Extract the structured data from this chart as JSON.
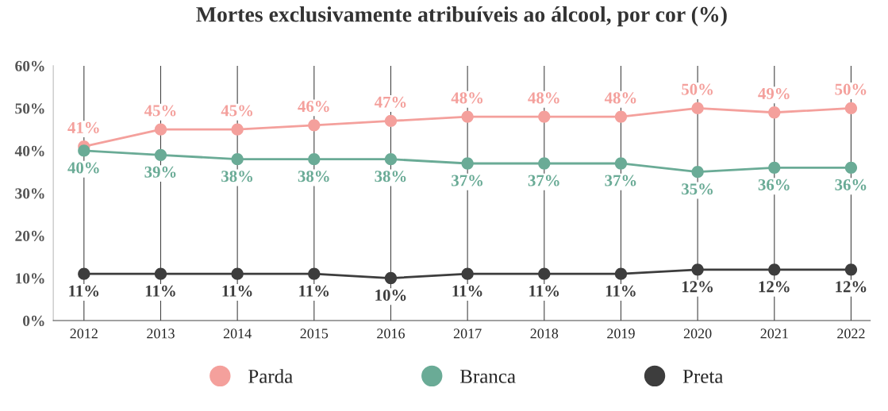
{
  "chart_data": {
    "type": "line",
    "title": "Mortes exclusivamente atribuíveis ao álcool, por cor (%)",
    "categories": [
      "2012",
      "2013",
      "2014",
      "2015",
      "2016",
      "2017",
      "2018",
      "2019",
      "2020",
      "2021",
      "2022"
    ],
    "series": [
      {
        "name": "Parda",
        "color": "#f4a09c",
        "values": [
          41,
          45,
          45,
          46,
          47,
          48,
          48,
          48,
          50,
          49,
          50
        ],
        "value_labels": [
          "41%",
          "45%",
          "45%",
          "46%",
          "47%",
          "48%",
          "48%",
          "48%",
          "50%",
          "49%",
          "50%"
        ]
      },
      {
        "name": "Branca",
        "color": "#6aab96",
        "values": [
          40,
          39,
          38,
          38,
          38,
          37,
          37,
          37,
          35,
          36,
          36
        ],
        "value_labels": [
          "40%",
          "39%",
          "38%",
          "38%",
          "38%",
          "37%",
          "37%",
          "37%",
          "35%",
          "36%",
          "36%"
        ]
      },
      {
        "name": "Preta",
        "color": "#3d3d3d",
        "values": [
          11,
          11,
          11,
          11,
          10,
          11,
          11,
          11,
          12,
          12,
          12
        ],
        "value_labels": [
          "11%",
          "11%",
          "11%",
          "11%",
          "10%",
          "11%",
          "11%",
          "11%",
          "12%",
          "12%",
          "12%"
        ]
      }
    ],
    "ylim": [
      0,
      60
    ],
    "yticks": [
      {
        "value": 0,
        "label": "0%"
      },
      {
        "value": 10,
        "label": "10%"
      },
      {
        "value": 20,
        "label": "20%"
      },
      {
        "value": 30,
        "label": "30%"
      },
      {
        "value": 40,
        "label": "40%"
      },
      {
        "value": 50,
        "label": "50%"
      },
      {
        "value": 60,
        "label": "60%"
      }
    ],
    "grid": "x",
    "legend": "bottom",
    "marker": "circle",
    "line_style": "solid"
  }
}
